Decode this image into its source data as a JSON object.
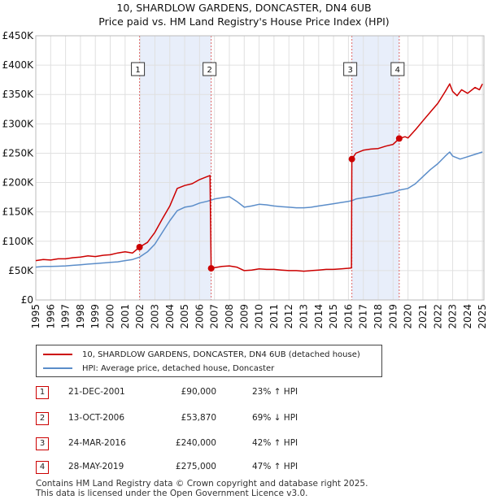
{
  "chart_data": {
    "type": "line",
    "title": "10, SHARDLOW GARDENS, DONCASTER, DN4 6UB",
    "subtitle": "Price paid vs. HM Land Registry's House Price Index (HPI)",
    "xlabel": "",
    "ylabel": "",
    "xlim": [
      1995,
      2025.1
    ],
    "ylim": [
      0,
      450000
    ],
    "y_ticks": [
      {
        "value": 0,
        "label": "£0"
      },
      {
        "value": 50000,
        "label": "£50K"
      },
      {
        "value": 100000,
        "label": "£100K"
      },
      {
        "value": 150000,
        "label": "£150K"
      },
      {
        "value": 200000,
        "label": "£200K"
      },
      {
        "value": 250000,
        "label": "£250K"
      },
      {
        "value": 300000,
        "label": "£300K"
      },
      {
        "value": 350000,
        "label": "£350K"
      },
      {
        "value": 400000,
        "label": "£400K"
      },
      {
        "value": 450000,
        "label": "£450K"
      }
    ],
    "x_ticks": [
      "1995",
      "1996",
      "1997",
      "1998",
      "1999",
      "2000",
      "2001",
      "2002",
      "2003",
      "2004",
      "2005",
      "2006",
      "2007",
      "2008",
      "2009",
      "2010",
      "2011",
      "2012",
      "2013",
      "2014",
      "2015",
      "2016",
      "2017",
      "2018",
      "2019",
      "2020",
      "2021",
      "2022",
      "2023",
      "2024",
      "2025"
    ],
    "series": [
      {
        "name": "10, SHARDLOW GARDENS, DONCASTER, DN4 6UB (detached house)",
        "color": "#cc0000",
        "points": [
          [
            1995.0,
            67000
          ],
          [
            1995.5,
            69000
          ],
          [
            1996.0,
            68000
          ],
          [
            1996.5,
            70000
          ],
          [
            1997.0,
            70000
          ],
          [
            1997.5,
            72000
          ],
          [
            1998.0,
            73000
          ],
          [
            1998.5,
            75000
          ],
          [
            1999.0,
            74000
          ],
          [
            1999.5,
            76000
          ],
          [
            2000.0,
            77000
          ],
          [
            2000.5,
            80000
          ],
          [
            2001.0,
            82000
          ],
          [
            2001.5,
            80000
          ],
          [
            2001.97,
            90000
          ],
          [
            2002.5,
            98000
          ],
          [
            2003.0,
            115000
          ],
          [
            2003.5,
            138000
          ],
          [
            2004.0,
            160000
          ],
          [
            2004.5,
            190000
          ],
          [
            2005.0,
            195000
          ],
          [
            2005.5,
            198000
          ],
          [
            2006.0,
            205000
          ],
          [
            2006.5,
            210000
          ],
          [
            2006.7,
            212000
          ],
          [
            2006.78,
            53870
          ],
          [
            2007.0,
            55000
          ],
          [
            2007.5,
            57000
          ],
          [
            2008.0,
            58000
          ],
          [
            2008.5,
            56000
          ],
          [
            2009.0,
            50000
          ],
          [
            2009.5,
            51000
          ],
          [
            2010.0,
            53000
          ],
          [
            2010.5,
            52000
          ],
          [
            2011.0,
            52000
          ],
          [
            2011.5,
            51000
          ],
          [
            2012.0,
            50000
          ],
          [
            2012.5,
            50000
          ],
          [
            2013.0,
            49000
          ],
          [
            2013.5,
            50000
          ],
          [
            2014.0,
            51000
          ],
          [
            2014.5,
            52000
          ],
          [
            2015.0,
            52000
          ],
          [
            2015.5,
            53000
          ],
          [
            2016.0,
            54000
          ],
          [
            2016.2,
            54500
          ],
          [
            2016.23,
            240000
          ],
          [
            2016.5,
            250000
          ],
          [
            2017.0,
            255000
          ],
          [
            2017.5,
            257000
          ],
          [
            2018.0,
            258000
          ],
          [
            2018.5,
            262000
          ],
          [
            2019.0,
            265000
          ],
          [
            2019.41,
            275000
          ],
          [
            2019.8,
            278000
          ],
          [
            2020.0,
            276000
          ],
          [
            2020.5,
            290000
          ],
          [
            2021.0,
            305000
          ],
          [
            2021.5,
            320000
          ],
          [
            2022.0,
            335000
          ],
          [
            2022.5,
            355000
          ],
          [
            2022.8,
            368000
          ],
          [
            2023.0,
            355000
          ],
          [
            2023.3,
            348000
          ],
          [
            2023.6,
            358000
          ],
          [
            2024.0,
            352000
          ],
          [
            2024.5,
            362000
          ],
          [
            2024.8,
            358000
          ],
          [
            2025.0,
            368000
          ]
        ]
      },
      {
        "name": "HPI: Average price, detached house, Doncaster",
        "color": "#5b8dc9",
        "points": [
          [
            1995.0,
            56000
          ],
          [
            1995.5,
            57000
          ],
          [
            1996.0,
            57000
          ],
          [
            1996.5,
            57500
          ],
          [
            1997.0,
            58000
          ],
          [
            1997.5,
            59000
          ],
          [
            1998.0,
            60000
          ],
          [
            1998.5,
            61000
          ],
          [
            1999.0,
            62000
          ],
          [
            1999.5,
            63000
          ],
          [
            2000.0,
            64000
          ],
          [
            2000.5,
            65000
          ],
          [
            2001.0,
            67000
          ],
          [
            2001.5,
            69000
          ],
          [
            2001.97,
            73000
          ],
          [
            2002.5,
            82000
          ],
          [
            2003.0,
            95000
          ],
          [
            2003.5,
            115000
          ],
          [
            2004.0,
            135000
          ],
          [
            2004.5,
            152000
          ],
          [
            2005.0,
            158000
          ],
          [
            2005.5,
            160000
          ],
          [
            2006.0,
            165000
          ],
          [
            2006.5,
            168000
          ],
          [
            2006.78,
            170000
          ],
          [
            2007.0,
            172000
          ],
          [
            2007.5,
            174000
          ],
          [
            2008.0,
            176000
          ],
          [
            2008.5,
            168000
          ],
          [
            2009.0,
            158000
          ],
          [
            2009.5,
            160000
          ],
          [
            2010.0,
            163000
          ],
          [
            2010.5,
            162000
          ],
          [
            2011.0,
            160000
          ],
          [
            2011.5,
            159000
          ],
          [
            2012.0,
            158000
          ],
          [
            2012.5,
            157000
          ],
          [
            2013.0,
            157000
          ],
          [
            2013.5,
            158000
          ],
          [
            2014.0,
            160000
          ],
          [
            2014.5,
            162000
          ],
          [
            2015.0,
            164000
          ],
          [
            2015.5,
            166000
          ],
          [
            2016.0,
            168000
          ],
          [
            2016.23,
            169000
          ],
          [
            2016.5,
            172000
          ],
          [
            2017.0,
            174000
          ],
          [
            2017.5,
            176000
          ],
          [
            2018.0,
            178000
          ],
          [
            2018.5,
            181000
          ],
          [
            2019.0,
            183000
          ],
          [
            2019.41,
            187000
          ],
          [
            2020.0,
            190000
          ],
          [
            2020.5,
            198000
          ],
          [
            2021.0,
            210000
          ],
          [
            2021.5,
            222000
          ],
          [
            2022.0,
            232000
          ],
          [
            2022.5,
            245000
          ],
          [
            2022.8,
            252000
          ],
          [
            2023.0,
            245000
          ],
          [
            2023.5,
            240000
          ],
          [
            2024.0,
            244000
          ],
          [
            2024.5,
            248000
          ],
          [
            2025.0,
            252000
          ]
        ]
      }
    ],
    "sales": [
      {
        "number": "1",
        "x": 2001.97,
        "price": 90000
      },
      {
        "number": "2",
        "x": 2006.78,
        "price": 53870
      },
      {
        "number": "3",
        "x": 2016.23,
        "price": 240000
      },
      {
        "number": "4",
        "x": 2019.41,
        "price": 275000
      }
    ],
    "shaded_ranges": [
      [
        2001.97,
        2006.78
      ],
      [
        2016.23,
        2019.41
      ]
    ],
    "legend_placement": "below"
  },
  "legend": {
    "property_label": "10, SHARDLOW GARDENS, DONCASTER, DN4 6UB (detached house)",
    "hpi_label": "HPI: Average price, detached house, Doncaster"
  },
  "sales_table": [
    {
      "number": "1",
      "date": "21-DEC-2001",
      "price": "£90,000",
      "hpi": "23% ↑ HPI"
    },
    {
      "number": "2",
      "date": "13-OCT-2006",
      "price": "£53,870",
      "hpi": "69% ↓ HPI"
    },
    {
      "number": "3",
      "date": "24-MAR-2016",
      "price": "£240,000",
      "hpi": "42% ↑ HPI"
    },
    {
      "number": "4",
      "date": "28-MAY-2019",
      "price": "£275,000",
      "hpi": "47% ↑ HPI"
    }
  ],
  "footer": {
    "line1": "Contains HM Land Registry data © Crown copyright and database right 2025.",
    "line2": "This data is licensed under the Open Government Licence v3.0."
  }
}
